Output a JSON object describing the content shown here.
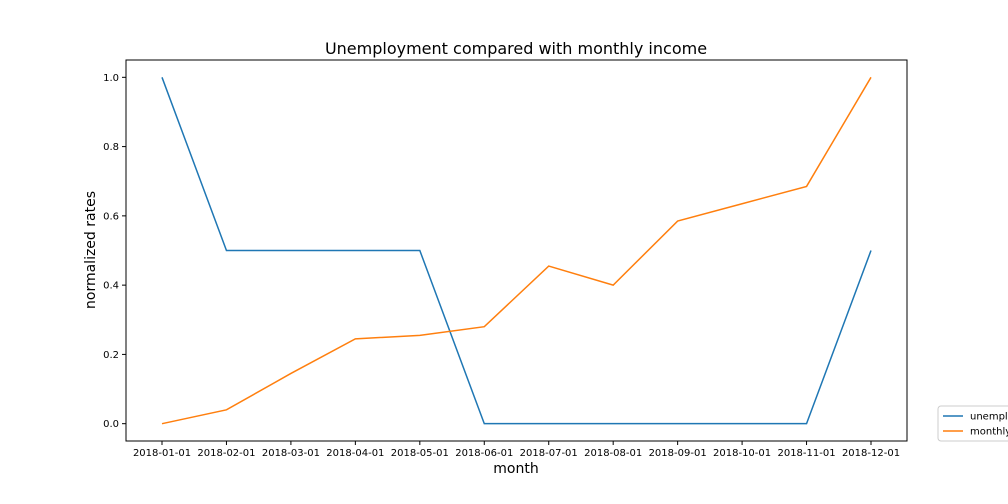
{
  "chart_data": {
    "type": "line",
    "title": "Unemployment compared with monthly income",
    "xlabel": "month",
    "ylabel": "normalized rates",
    "categories": [
      "2018-01-01",
      "2018-02-01",
      "2018-03-01",
      "2018-04-01",
      "2018-05-01",
      "2018-06-01",
      "2018-07-01",
      "2018-08-01",
      "2018-09-01",
      "2018-10-01",
      "2018-11-01",
      "2018-12-01"
    ],
    "y_ticks": [
      "0.0",
      "0.2",
      "0.4",
      "0.6",
      "0.8",
      "1.0"
    ],
    "ylim": [
      -0.05,
      1.05
    ],
    "grid": false,
    "legend_position": "right-bottom, outside plot",
    "series": [
      {
        "name": "unemployment",
        "color": "#1f77b4",
        "values": [
          1.0,
          0.5,
          0.5,
          0.5,
          0.5,
          0.0,
          0.0,
          0.0,
          0.0,
          0.0,
          0.0,
          0.5
        ]
      },
      {
        "name": "monthly income",
        "color": "#ff7f0e",
        "values": [
          0.0,
          0.04,
          0.145,
          0.245,
          0.255,
          0.28,
          0.455,
          0.4,
          0.585,
          0.635,
          0.685,
          1.0
        ]
      }
    ]
  }
}
